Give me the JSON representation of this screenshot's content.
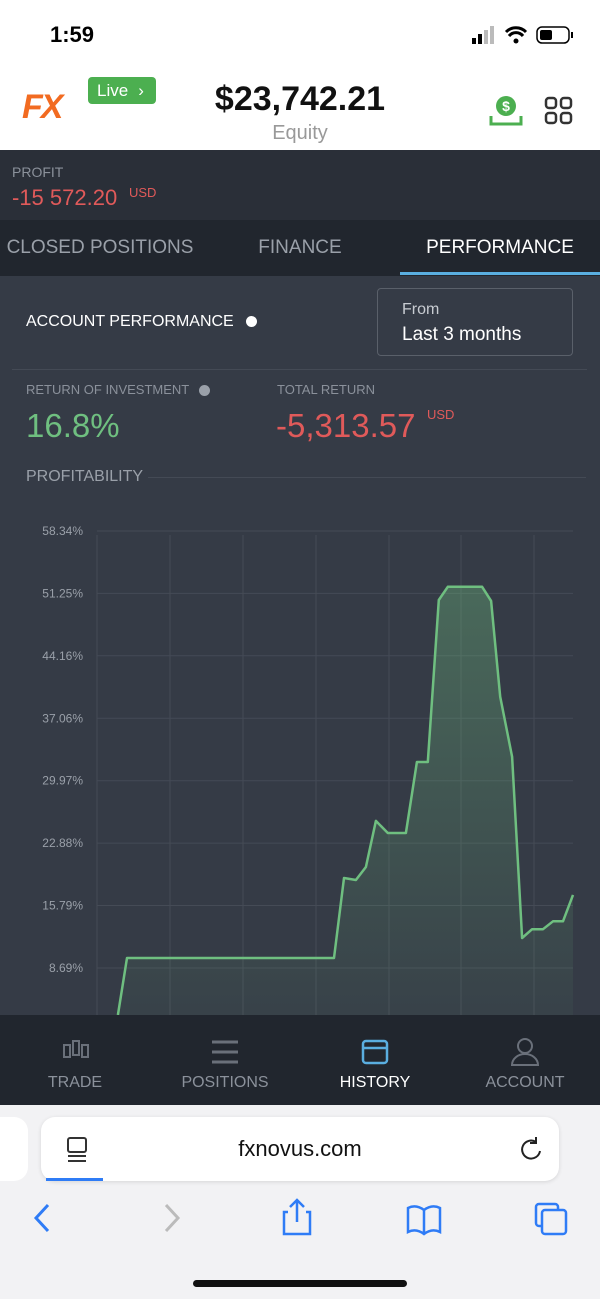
{
  "status_bar": {
    "time": "1:59"
  },
  "header": {
    "logo": "FX",
    "badge": "Live",
    "equity_value": "$23,742.21",
    "equity_label": "Equity"
  },
  "profit": {
    "label": "PROFIT",
    "value": "-15 572.20",
    "currency": "USD"
  },
  "tabs": [
    "CLOSED POSITIONS",
    "FINANCE",
    "PERFORMANCE"
  ],
  "performance": {
    "title": "ACCOUNT PERFORMANCE",
    "period_label": "From",
    "period_value": "Last 3 months",
    "roi_label": "RETURN OF INVESTMENT",
    "roi_value": "16.8%",
    "total_return_label": "TOTAL RETURN",
    "total_return_value": "-5,313.57",
    "total_return_currency": "USD",
    "section_title": "PROFITABILITY"
  },
  "chart_data": {
    "type": "line",
    "color": "#6fbf80",
    "grid": true,
    "x": [
      4.4,
      6.3,
      49.8,
      51.9,
      54.4,
      56.5,
      58.6,
      61.1,
      64.9,
      67.2,
      69.5,
      71.8,
      73.7,
      80.9,
      82.8,
      84.7,
      87.2,
      89.3,
      91.4,
      93.7,
      95.8,
      97.9,
      100
    ],
    "values": [
      3.35,
      9.83,
      9.83,
      18.92,
      18.69,
      20.17,
      25.4,
      24.03,
      24.03,
      32.1,
      32.1,
      50.5,
      52.0,
      52.0,
      50.4,
      39.5,
      32.7,
      12.1,
      13.1,
      13.1,
      14.0,
      14.0,
      17.0
    ],
    "xlim": [
      0,
      100
    ],
    "ylim": [
      3.35,
      58.34
    ],
    "yticks": [
      {
        "value": 58.34,
        "label": "58.34%"
      },
      {
        "value": 51.25,
        "label": "51.25%"
      },
      {
        "value": 44.16,
        "label": "44.16%"
      },
      {
        "value": 37.06,
        "label": "37.06%"
      },
      {
        "value": 29.97,
        "label": "29.97%"
      },
      {
        "value": 22.88,
        "label": "22.88%"
      },
      {
        "value": 15.79,
        "label": "15.79%"
      },
      {
        "value": 8.69,
        "label": "8.69%"
      }
    ]
  },
  "bottom_nav": [
    "TRADE",
    "POSITIONS",
    "HISTORY",
    "ACCOUNT"
  ],
  "browser": {
    "url": "fxnovus.com"
  }
}
